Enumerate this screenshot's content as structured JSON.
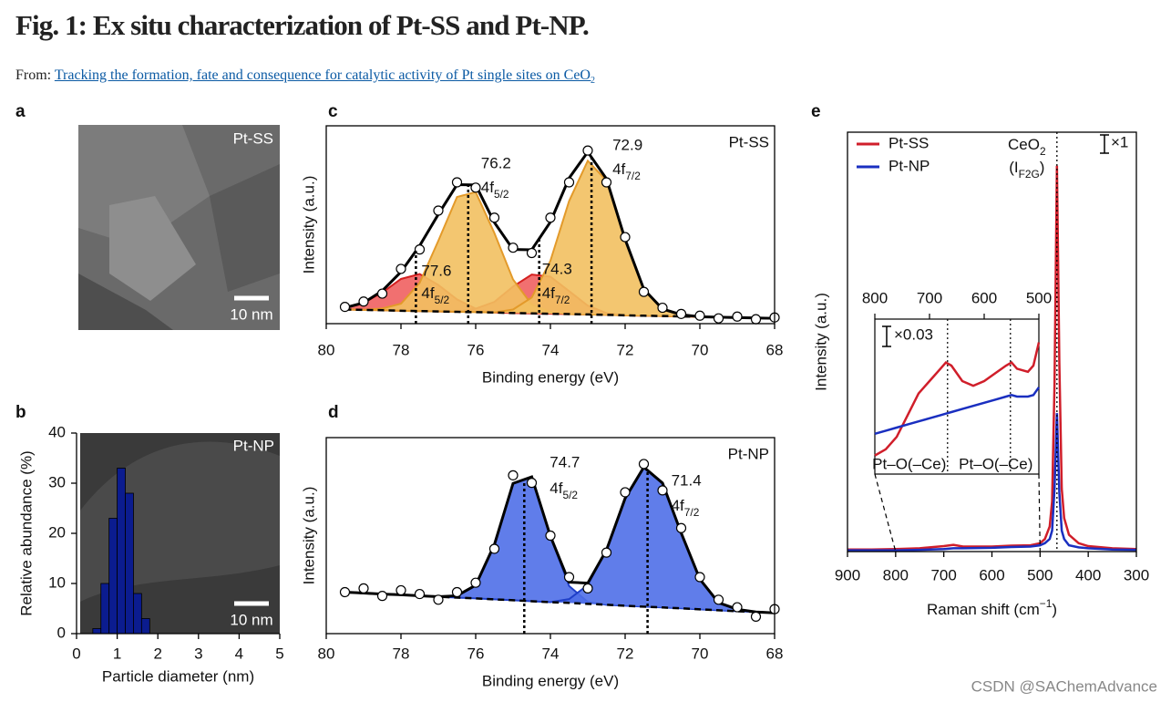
{
  "header": {
    "title": "Fig. 1: Ex situ characterization of Pt-SS and Pt-NP.",
    "from": "From:",
    "link": "Tracking the formation, fate and consequence for catalytic activity of Pt single sites on CeO",
    "link_sub": "2"
  },
  "image_panel": {
    "letter": "a",
    "label": "Pt-SS",
    "scale_bar": "10 nm"
  },
  "chart_data": [
    {
      "type": "histogram",
      "letter": "b",
      "label": "Pt-NP",
      "scale_bar": "10 nm",
      "xlabel": "Particle diameter (nm)",
      "ylabel": "Relative abundance (%)",
      "bins": [
        0.4,
        0.6,
        0.8,
        1.0,
        1.2,
        1.4,
        1.6,
        1.8
      ],
      "values": [
        1,
        10,
        23,
        33,
        28,
        8,
        3
      ],
      "color": "#0b1c8f",
      "xlim": [
        0,
        5
      ],
      "ylim": [
        0,
        40
      ],
      "xticks": [
        0,
        1,
        2,
        3,
        4,
        5
      ],
      "yticks": [
        0,
        10,
        20,
        30,
        40
      ]
    },
    {
      "type": "line",
      "letter": "c",
      "label": "Pt-SS",
      "xlabel": "Binding energy (eV)",
      "ylabel": "Intensity (a.u.)",
      "xlim": [
        80,
        68
      ],
      "ylim": [
        0,
        112
      ],
      "xticks": [
        80,
        78,
        76,
        74,
        72,
        70,
        68
      ],
      "x": [
        79.5,
        79,
        78.5,
        78,
        77.5,
        77,
        76.5,
        76,
        75.5,
        75,
        74.5,
        74,
        73.5,
        73,
        72.5,
        72,
        71.5,
        71,
        70.5,
        70,
        69.5,
        69,
        68.5,
        68
      ],
      "series": [
        {
          "role": "background",
          "color": "#000000",
          "dash": true,
          "values": [
            8,
            7.8,
            7.6,
            7.3,
            7.1,
            6.9,
            6.7,
            6.5,
            6.3,
            6,
            5.8,
            5.6,
            5.4,
            5.2,
            5,
            4.7,
            4.5,
            4.3,
            4.1,
            3.9,
            3.7,
            3.4,
            3.2,
            3
          ]
        },
        {
          "role": "component",
          "color": "#d42020",
          "fill": "#f06060",
          "values": [
            1,
            4,
            10,
            18,
            21,
            15,
            7,
            2,
            0,
            0,
            0,
            0,
            0,
            0,
            0,
            0,
            0,
            0,
            0,
            0,
            0,
            0,
            0,
            0
          ]
        },
        {
          "role": "component",
          "color": "#d42020",
          "fill": "#f06060",
          "values": [
            0,
            0,
            0,
            0,
            0,
            0,
            0,
            2,
            6,
            15,
            22,
            21,
            13,
            5,
            1,
            0,
            0,
            0,
            0,
            0,
            0,
            0,
            0,
            0
          ]
        },
        {
          "role": "component",
          "color": "#e39a2a",
          "fill": "#f2c060",
          "values": [
            0,
            0,
            1,
            4,
            16,
            40,
            65,
            68,
            45,
            19,
            5,
            1,
            0,
            0,
            0,
            0,
            0,
            0,
            0,
            0,
            0,
            0,
            0,
            0
          ]
        },
        {
          "role": "component",
          "color": "#e39a2a",
          "fill": "#f2c060",
          "values": [
            0,
            0,
            0,
            0,
            0,
            0,
            0,
            0,
            0,
            2,
            9,
            30,
            64,
            87,
            76,
            43,
            15,
            4,
            1,
            0,
            0,
            0,
            0,
            0
          ]
        },
        {
          "role": "envelope",
          "color": "#000000",
          "values": [
            9,
            11.8,
            18.6,
            29.3,
            44.1,
            61.9,
            78.7,
            78.5,
            57.3,
            42,
            41.8,
            57.6,
            82.4,
            97.2,
            82,
            47.7,
            19.5,
            8.3,
            5.1,
            3.9,
            3.7,
            3.4,
            3.2,
            3
          ]
        },
        {
          "role": "data",
          "marker": "circle",
          "color": "#000000",
          "values": [
            9.5,
            12.5,
            17,
            31,
            42,
            64,
            80,
            77,
            60,
            43,
            40,
            60,
            80,
            98,
            80,
            49,
            18,
            9,
            5.5,
            4.5,
            3,
            4,
            2.5,
            3.5
          ]
        }
      ],
      "peaks": [
        {
          "position": 76.2,
          "orbital": "4f",
          "sub": "5/2"
        },
        {
          "position": 72.9,
          "orbital": "4f",
          "sub": "7/2"
        },
        {
          "position": 77.6,
          "orbital": "4f",
          "sub": "5/2"
        },
        {
          "position": 74.3,
          "orbital": "4f",
          "sub": "7/2"
        }
      ]
    },
    {
      "type": "line",
      "letter": "d",
      "label": "Pt-NP",
      "xlabel": "Binding energy (eV)",
      "ylabel": "Intensity (a.u.)",
      "xlim": [
        80,
        68
      ],
      "ylim": [
        0,
        104
      ],
      "xticks": [
        80,
        78,
        76,
        74,
        72,
        70,
        68
      ],
      "x": [
        79.5,
        79,
        78.5,
        78,
        77.5,
        77,
        76.5,
        76,
        75.5,
        75,
        74.5,
        74,
        73.5,
        73,
        72.5,
        72,
        71.5,
        71,
        70.5,
        70,
        69.5,
        69,
        68.5,
        68
      ],
      "series": [
        {
          "role": "background",
          "color": "#000000",
          "dash": true,
          "values": [
            22,
            21.5,
            21,
            20.6,
            20.1,
            19.6,
            19.1,
            18.7,
            18.2,
            17.7,
            17.2,
            16.7,
            16.3,
            15.8,
            15.3,
            14.8,
            14.3,
            13.9,
            13.4,
            12.9,
            12.4,
            11.9,
            11.5,
            11
          ]
        },
        {
          "role": "component",
          "color": "#1f3fc8",
          "fill": "#4f6fe8",
          "values": [
            0,
            0,
            0,
            0,
            0,
            0,
            1,
            7,
            29,
            62,
            66,
            35,
            9,
            1,
            0,
            0,
            0,
            0,
            0,
            0,
            0,
            0,
            0,
            0
          ]
        },
        {
          "role": "component",
          "color": "#1f3fc8",
          "fill": "#4f6fe8",
          "values": [
            0,
            0,
            0,
            0,
            0,
            0,
            0,
            0,
            0,
            0,
            0,
            0,
            2,
            10,
            29,
            57,
            74,
            66,
            40,
            16,
            4,
            1,
            0,
            0
          ]
        },
        {
          "role": "envelope",
          "color": "#000000",
          "values": [
            22,
            21.5,
            21,
            20.6,
            20.1,
            19.6,
            20.1,
            25.7,
            47.2,
            79.7,
            83.2,
            51.7,
            27.3,
            26.8,
            44.3,
            71.8,
            88.3,
            79.9,
            53.4,
            28.9,
            16.4,
            12.9,
            11.5,
            11
          ]
        },
        {
          "role": "data",
          "marker": "circle",
          "color": "#000000",
          "values": [
            22,
            24,
            20,
            23,
            21,
            18,
            22,
            27,
            45,
            84,
            80,
            52,
            30,
            24,
            43,
            75,
            90,
            76,
            56,
            30,
            18,
            14,
            9,
            13
          ]
        }
      ],
      "peaks": [
        {
          "position": 74.7,
          "orbital": "4f",
          "sub": "5/2"
        },
        {
          "position": 71.4,
          "orbital": "4f",
          "sub": "7/2"
        }
      ]
    },
    {
      "type": "line",
      "letter": "e",
      "xlabel": [
        {
          "text": "Raman shift (cm"
        },
        {
          "text": "−1",
          "sup": true
        },
        {
          "text": ")"
        }
      ],
      "ylabel": "Intensity (a.u.)",
      "xlim": [
        900,
        300
      ],
      "ylim": [
        0,
        100
      ],
      "xticks": [
        900,
        800,
        700,
        600,
        500,
        400,
        300
      ],
      "legend": "upper left",
      "scale": "×1",
      "x": [
        900,
        850,
        800,
        750,
        700,
        680,
        660,
        600,
        560,
        520,
        500,
        490,
        480,
        475,
        470,
        465,
        460,
        455,
        450,
        440,
        420,
        400,
        350,
        300
      ],
      "series": [
        {
          "name": "Pt-SS",
          "color": "#d01e2a",
          "values": [
            0.5,
            0.5,
            0.6,
            0.8,
            1.3,
            1.6,
            1.2,
            1.2,
            1.4,
            1.5,
            2,
            3,
            6,
            12,
            40,
            92,
            45,
            15,
            8,
            4,
            2,
            1.3,
            0.8,
            0.6
          ]
        },
        {
          "name": "Pt-NP",
          "color": "#1a2fc0",
          "values": [
            0.3,
            0.3,
            0.3,
            0.4,
            0.6,
            0.8,
            0.8,
            0.9,
            1.1,
            1.2,
            1.5,
            2,
            3,
            5,
            15,
            33,
            14,
            5,
            3,
            1.5,
            1,
            0.8,
            0.5,
            0.4
          ]
        }
      ],
      "peak_label": {
        "x": 465,
        "line1": [
          {
            "text": "CeO"
          },
          {
            "text": "2",
            "sub": true
          }
        ],
        "line2": [
          {
            "text": "(I"
          },
          {
            "text": "F2G",
            "sub": true
          },
          {
            "text": ")"
          }
        ]
      },
      "inset": {
        "xlim": [
          800,
          500
        ],
        "ylim": [
          0,
          100
        ],
        "xticks": [
          800,
          700,
          600,
          500
        ],
        "scale": "×0.03",
        "x": [
          800,
          780,
          760,
          740,
          720,
          700,
          680,
          670,
          660,
          640,
          620,
          600,
          580,
          560,
          550,
          540,
          520,
          510,
          500
        ],
        "series": [
          {
            "color": "#d01e2a",
            "values": [
              12,
              16,
              24,
              38,
              52,
              60,
              68,
              72,
              70,
              60,
              57,
              60,
              65,
              70,
              72,
              68,
              66,
              70,
              85
            ]
          },
          {
            "color": "#1a2fc0",
            "values": [
              26,
              28,
              30,
              32,
              34,
              36,
              38,
              39,
              40,
              42,
              44,
              46,
              48,
              50,
              51,
              50,
              50,
              51,
              56
            ]
          }
        ],
        "markers": [
          {
            "x": 667,
            "label": "Pt–O(–Ce)"
          },
          {
            "x": 552,
            "label": "Pt–O(–Ce)"
          }
        ]
      }
    }
  ],
  "watermark": "CSDN @SAChemAdvance"
}
